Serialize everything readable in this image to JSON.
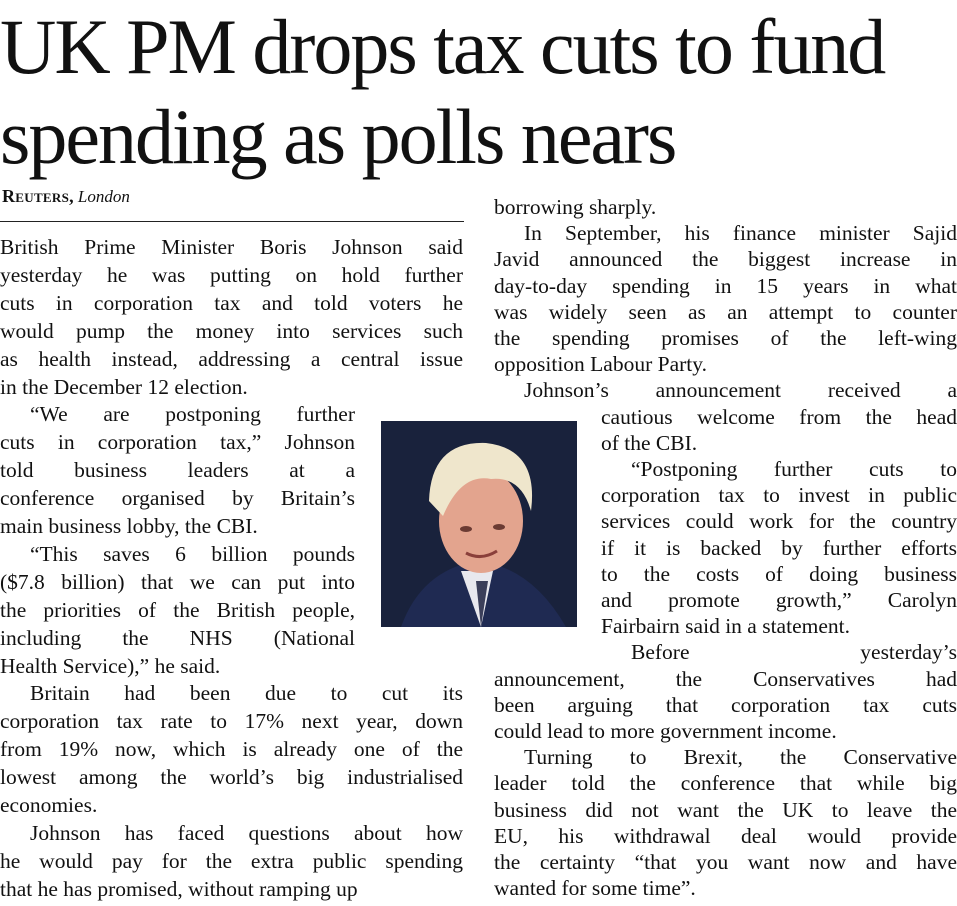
{
  "headline": [
    "UK PM drops tax cuts to fund",
    "spending as polls nears"
  ],
  "byline": {
    "agency": "Reuters,",
    "location": "London"
  },
  "columns": [
    {
      "paragraphs": [
        [
          "British Prime Minister Boris Johnson said",
          "yesterday he was putting on hold further",
          "cuts in corporation tax and told voters he",
          "would pump the money into services such",
          "as health instead, addressing a central issue",
          "in the December 12 election."
        ],
        [
          "“We are postponing further",
          "cuts in corporation tax,” Johnson",
          "told business leaders at a",
          "conference organised by Britain’s",
          "main business lobby, the CBI."
        ],
        [
          "“This saves 6 billion pounds",
          "($7.8 billion) that we can put into",
          "the priorities of the British people,",
          "including the NHS (National",
          "Health Service),” he said."
        ],
        [
          "Britain had been due to cut its",
          "corporation tax rate to 17% next year, down",
          "from 19% now, which is already one of the",
          "lowest among the world’s big industrialised",
          "economies."
        ],
        [
          "Johnson has faced questions about how",
          "he would pay for the extra public spending",
          "that he has promised, without ramping up"
        ]
      ]
    },
    {
      "paragraphs": [
        [
          "borrowing sharply."
        ],
        [
          "In September, his finance minister Sajid",
          "Javid announced the biggest increase in",
          "day-to-day spending in 15 years in what",
          "was widely seen as an attempt to counter",
          "the spending promises of the left-wing",
          "opposition Labour Party."
        ],
        [
          "Johnson’s announcement received a",
          "cautious welcome from the head",
          "of the CBI."
        ],
        [
          "“Postponing further cuts to",
          "corporation tax to invest in public",
          "services could work for the country",
          "if it is backed by further efforts",
          "to the costs of doing business",
          "and promote growth,” Carolyn",
          "Fairbairn said in a statement."
        ],
        [
          "Before yesterday’s",
          "announcement, the Conservatives had",
          "been arguing that corporation tax cuts",
          "could lead to more government income."
        ],
        [
          "Turning to Brexit, the Conservative",
          "leader told the conference that while big",
          "business did not want the UK to leave the",
          "EU, his withdrawal deal would provide",
          "the certainty “that you want now and have",
          "wanted for some time”."
        ]
      ]
    }
  ]
}
